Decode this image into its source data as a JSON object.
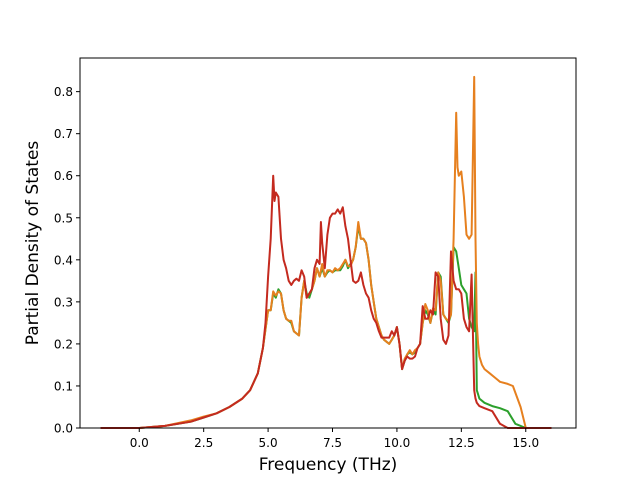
{
  "chart_data": {
    "type": "line",
    "xlabel": "Frequency (THz)",
    "ylabel": "Partial Density of States",
    "xlim": [
      -2.3,
      16.95
    ],
    "ylim": [
      0.0,
      0.88
    ],
    "x_ticks": [
      0.0,
      2.5,
      5.0,
      7.5,
      10.0,
      12.5,
      15.0
    ],
    "y_ticks": [
      0.0,
      0.1,
      0.2,
      0.3,
      0.4,
      0.5,
      0.6,
      0.7,
      0.8
    ],
    "x_tick_labels": [
      "0.0",
      "2.5",
      "5.0",
      "7.5",
      "10.0",
      "12.5",
      "15.0"
    ],
    "y_tick_labels": [
      "0.0",
      "0.1",
      "0.2",
      "0.3",
      "0.4",
      "0.5",
      "0.6",
      "0.7",
      "0.8"
    ],
    "grid": false,
    "legend": "none",
    "series": [
      {
        "color": "#2ca02c",
        "x": [
          -1.5,
          0.0,
          1.0,
          2.0,
          2.5,
          3.0,
          3.5,
          4.0,
          4.3,
          4.6,
          4.8,
          5.0,
          5.1,
          5.2,
          5.3,
          5.4,
          5.5,
          5.6,
          5.7,
          5.8,
          5.9,
          6.0,
          6.1,
          6.2,
          6.3,
          6.4,
          6.5,
          6.6,
          6.7,
          6.8,
          6.9,
          7.0,
          7.1,
          7.2,
          7.3,
          7.4,
          7.5,
          7.6,
          7.7,
          7.8,
          7.9,
          8.0,
          8.1,
          8.2,
          8.3,
          8.4,
          8.5,
          8.6,
          8.7,
          8.8,
          8.9,
          9.0,
          9.1,
          9.2,
          9.3,
          9.4,
          9.5,
          9.6,
          9.7,
          9.8,
          9.9,
          10.0,
          10.1,
          10.2,
          10.3,
          10.4,
          10.5,
          10.6,
          10.7,
          10.8,
          10.9,
          11.0,
          11.1,
          11.2,
          11.3,
          11.4,
          11.5,
          11.6,
          11.7,
          11.8,
          11.9,
          12.0,
          12.1,
          12.2,
          12.3,
          12.4,
          12.5,
          12.6,
          12.7,
          12.8,
          12.9,
          13.0,
          13.05,
          13.1,
          13.2,
          13.4,
          13.7,
          14.0,
          14.3,
          14.6,
          15.0,
          16.0
        ],
        "y": [
          0.0,
          0.0,
          0.005,
          0.015,
          0.025,
          0.035,
          0.05,
          0.07,
          0.09,
          0.13,
          0.19,
          0.28,
          0.28,
          0.32,
          0.31,
          0.33,
          0.32,
          0.28,
          0.26,
          0.255,
          0.25,
          0.23,
          0.225,
          0.22,
          0.31,
          0.35,
          0.32,
          0.31,
          0.33,
          0.35,
          0.38,
          0.36,
          0.38,
          0.36,
          0.37,
          0.375,
          0.37,
          0.375,
          0.375,
          0.375,
          0.385,
          0.4,
          0.38,
          0.39,
          0.4,
          0.43,
          0.48,
          0.45,
          0.45,
          0.44,
          0.4,
          0.34,
          0.3,
          0.26,
          0.24,
          0.22,
          0.21,
          0.205,
          0.2,
          0.21,
          0.22,
          0.24,
          0.2,
          0.14,
          0.16,
          0.175,
          0.18,
          0.175,
          0.18,
          0.19,
          0.2,
          0.25,
          0.28,
          0.27,
          0.25,
          0.28,
          0.27,
          0.37,
          0.36,
          0.27,
          0.26,
          0.25,
          0.27,
          0.43,
          0.42,
          0.38,
          0.34,
          0.33,
          0.32,
          0.26,
          0.24,
          0.23,
          0.37,
          0.09,
          0.07,
          0.06,
          0.052,
          0.047,
          0.04,
          0.01,
          0.0,
          0.0
        ]
      },
      {
        "color": "#e6801f",
        "x": [
          -1.5,
          0.0,
          1.0,
          2.0,
          2.5,
          3.0,
          3.5,
          4.0,
          4.3,
          4.6,
          4.8,
          5.0,
          5.1,
          5.2,
          5.3,
          5.4,
          5.5,
          5.6,
          5.7,
          5.8,
          5.9,
          6.0,
          6.1,
          6.2,
          6.3,
          6.4,
          6.5,
          6.6,
          6.7,
          6.8,
          6.9,
          7.0,
          7.1,
          7.2,
          7.3,
          7.4,
          7.5,
          7.6,
          7.7,
          7.8,
          7.9,
          8.0,
          8.1,
          8.2,
          8.3,
          8.4,
          8.5,
          8.6,
          8.7,
          8.8,
          8.9,
          9.0,
          9.1,
          9.2,
          9.3,
          9.4,
          9.5,
          9.6,
          9.7,
          9.8,
          9.9,
          10.0,
          10.1,
          10.2,
          10.3,
          10.4,
          10.5,
          10.6,
          10.7,
          10.8,
          10.9,
          11.0,
          11.1,
          11.2,
          11.3,
          11.4,
          11.5,
          11.6,
          11.7,
          11.8,
          11.9,
          12.0,
          12.1,
          12.2,
          12.3,
          12.35,
          12.4,
          12.5,
          12.6,
          12.7,
          12.8,
          12.9,
          13.0,
          13.05,
          13.1,
          13.15,
          13.2,
          13.3,
          13.4,
          13.6,
          13.8,
          14.0,
          14.3,
          14.5,
          14.8,
          15.0,
          16.0
        ],
        "y": [
          0.0,
          0.0,
          0.005,
          0.018,
          0.027,
          0.035,
          0.05,
          0.07,
          0.09,
          0.13,
          0.19,
          0.28,
          0.28,
          0.325,
          0.315,
          0.325,
          0.32,
          0.28,
          0.26,
          0.255,
          0.255,
          0.23,
          0.225,
          0.22,
          0.31,
          0.35,
          0.31,
          0.32,
          0.33,
          0.35,
          0.38,
          0.36,
          0.39,
          0.36,
          0.375,
          0.375,
          0.37,
          0.38,
          0.375,
          0.38,
          0.39,
          0.4,
          0.385,
          0.385,
          0.4,
          0.43,
          0.49,
          0.45,
          0.45,
          0.44,
          0.4,
          0.34,
          0.3,
          0.26,
          0.24,
          0.22,
          0.21,
          0.205,
          0.2,
          0.21,
          0.22,
          0.24,
          0.2,
          0.14,
          0.165,
          0.175,
          0.185,
          0.175,
          0.185,
          0.19,
          0.2,
          0.25,
          0.295,
          0.28,
          0.25,
          0.285,
          0.28,
          0.37,
          0.35,
          0.27,
          0.26,
          0.255,
          0.27,
          0.45,
          0.75,
          0.62,
          0.6,
          0.61,
          0.55,
          0.46,
          0.45,
          0.46,
          0.835,
          0.45,
          0.25,
          0.2,
          0.17,
          0.15,
          0.14,
          0.13,
          0.12,
          0.11,
          0.105,
          0.1,
          0.05,
          0.0,
          0.0
        ]
      },
      {
        "color": "#c42a1f",
        "x": [
          -1.5,
          0.0,
          1.0,
          2.0,
          2.5,
          3.0,
          3.5,
          4.0,
          4.3,
          4.6,
          4.8,
          4.9,
          5.0,
          5.1,
          5.2,
          5.25,
          5.3,
          5.4,
          5.5,
          5.6,
          5.7,
          5.8,
          5.9,
          6.0,
          6.1,
          6.2,
          6.3,
          6.4,
          6.5,
          6.6,
          6.7,
          6.8,
          6.9,
          7.0,
          7.05,
          7.1,
          7.2,
          7.3,
          7.4,
          7.5,
          7.6,
          7.7,
          7.8,
          7.9,
          8.0,
          8.1,
          8.2,
          8.3,
          8.4,
          8.5,
          8.6,
          8.7,
          8.8,
          8.9,
          9.0,
          9.1,
          9.2,
          9.3,
          9.4,
          9.5,
          9.6,
          9.7,
          9.8,
          9.9,
          10.0,
          10.1,
          10.2,
          10.3,
          10.4,
          10.5,
          10.6,
          10.7,
          10.8,
          10.9,
          11.0,
          11.1,
          11.2,
          11.3,
          11.4,
          11.5,
          11.6,
          11.7,
          11.8,
          11.9,
          12.0,
          12.1,
          12.2,
          12.3,
          12.4,
          12.5,
          12.6,
          12.7,
          12.8,
          12.9,
          13.0,
          13.05,
          13.1,
          13.2,
          13.4,
          13.7,
          14.0,
          14.3,
          14.6,
          15.0,
          16.0
        ],
        "y": [
          0.0,
          0.0,
          0.005,
          0.015,
          0.025,
          0.035,
          0.05,
          0.07,
          0.09,
          0.13,
          0.19,
          0.25,
          0.36,
          0.45,
          0.6,
          0.54,
          0.56,
          0.55,
          0.45,
          0.4,
          0.38,
          0.35,
          0.34,
          0.35,
          0.355,
          0.35,
          0.375,
          0.36,
          0.31,
          0.32,
          0.33,
          0.38,
          0.4,
          0.39,
          0.49,
          0.44,
          0.38,
          0.46,
          0.5,
          0.51,
          0.51,
          0.52,
          0.51,
          0.525,
          0.48,
          0.45,
          0.4,
          0.35,
          0.345,
          0.35,
          0.37,
          0.34,
          0.32,
          0.31,
          0.28,
          0.26,
          0.25,
          0.23,
          0.215,
          0.215,
          0.215,
          0.215,
          0.23,
          0.22,
          0.24,
          0.2,
          0.14,
          0.16,
          0.17,
          0.165,
          0.165,
          0.17,
          0.19,
          0.2,
          0.29,
          0.26,
          0.26,
          0.28,
          0.27,
          0.37,
          0.36,
          0.26,
          0.21,
          0.2,
          0.22,
          0.42,
          0.35,
          0.33,
          0.33,
          0.32,
          0.26,
          0.24,
          0.23,
          0.365,
          0.09,
          0.07,
          0.06,
          0.052,
          0.047,
          0.04,
          0.01,
          0.0,
          0.0,
          0.0,
          0.0
        ]
      }
    ]
  }
}
